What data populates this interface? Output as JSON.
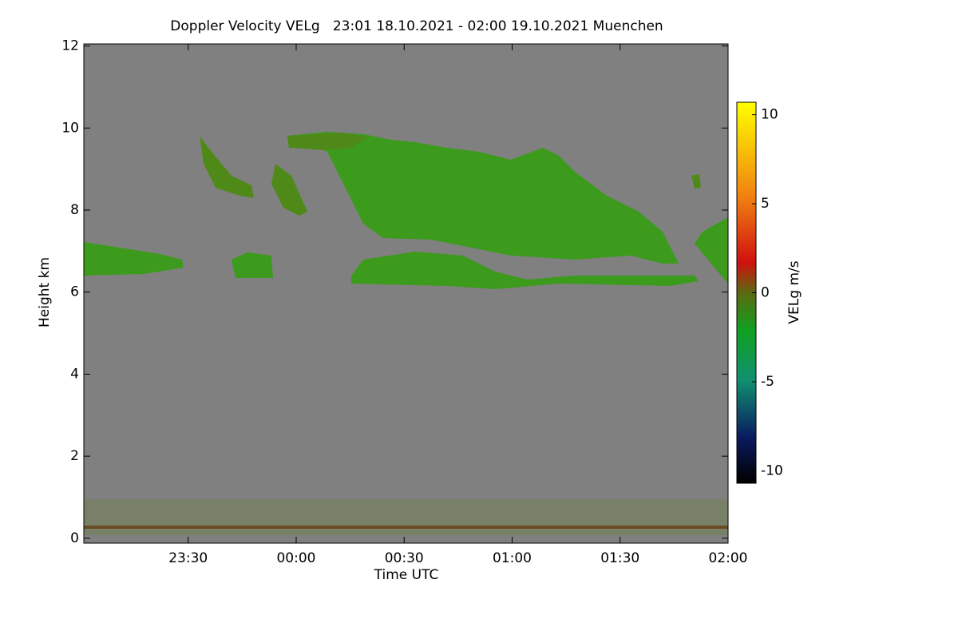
{
  "chart_data": {
    "type": "time-height",
    "title": "Doppler Velocity VELg   23:01 18.10.2021 - 02:00 19.10.2021 Muenchen",
    "x_label": "Time UTC",
    "y_label": "Height km",
    "xlim": [
      1,
      180
    ],
    "xticks": [
      {
        "value": 30,
        "label": "23:30"
      },
      {
        "value": 60,
        "label": "00:00"
      },
      {
        "value": 90,
        "label": "00:30"
      },
      {
        "value": 120,
        "label": "01:00"
      },
      {
        "value": 150,
        "label": "01:30"
      },
      {
        "value": 180,
        "label": "02:00"
      }
    ],
    "ylim": [
      -0.12,
      12.05
    ],
    "yticks": [
      0,
      2,
      4,
      6,
      8,
      10,
      12
    ],
    "colorbar_label": "VELg m/s",
    "clim": [
      -10.7,
      10.7
    ],
    "cticks": [
      -10,
      -5,
      0,
      5,
      10
    ]
  }
}
